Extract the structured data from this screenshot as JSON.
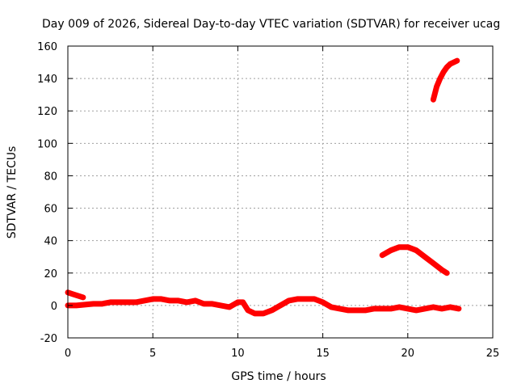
{
  "chart_data": {
    "type": "line",
    "title": "Day 009 of 2026, Sidereal Day-to-day VTEC variation (SDTVAR) for receiver ucag",
    "xlabel": "GPS time / hours",
    "ylabel": "SDTVAR / TECUs",
    "xlim": [
      0,
      25
    ],
    "ylim": [
      -20,
      160
    ],
    "xticks": [
      0,
      5,
      10,
      15,
      20,
      25
    ],
    "yticks": [
      -20,
      0,
      20,
      40,
      60,
      80,
      100,
      120,
      140,
      160
    ],
    "grid": true,
    "color": "#ff0000",
    "series": [
      {
        "name": "early-offset",
        "x": [
          0.0,
          0.3,
          0.6,
          0.9
        ],
        "y": [
          8,
          7,
          6,
          5
        ]
      },
      {
        "name": "main",
        "x": [
          0.0,
          0.5,
          1.0,
          1.5,
          2.0,
          2.5,
          3.0,
          3.5,
          4.0,
          4.5,
          5.0,
          5.5,
          6.0,
          6.5,
          7.0,
          7.5,
          8.0,
          8.5,
          9.0,
          9.5,
          10.0,
          10.3,
          10.6,
          11.0,
          11.5,
          12.0,
          12.5,
          13.0,
          13.5,
          14.0,
          14.5,
          15.0,
          15.5,
          16.0,
          16.5,
          17.0,
          17.5,
          18.0,
          18.5,
          19.0,
          19.5,
          20.0,
          20.5,
          21.0,
          21.5,
          22.0,
          22.5,
          23.0
        ],
        "y": [
          0,
          0,
          0.5,
          1,
          1,
          2,
          2,
          2,
          2,
          3,
          4,
          4,
          3,
          3,
          2,
          3,
          1,
          1,
          0,
          -1,
          2,
          2,
          -3,
          -5,
          -5,
          -3,
          0,
          3,
          4,
          4,
          4,
          2,
          -1,
          -2,
          -3,
          -3,
          -3,
          -2,
          -2,
          -2,
          -1,
          -2,
          -3,
          -2,
          -1,
          -2,
          -1,
          -2
        ]
      },
      {
        "name": "mid-arc",
        "x": [
          18.5,
          19.0,
          19.5,
          20.0,
          20.5,
          21.0,
          21.5,
          22.0,
          22.3
        ],
        "y": [
          31,
          34,
          36,
          36,
          34,
          30,
          26,
          22,
          20
        ]
      },
      {
        "name": "upper-arc",
        "x": [
          21.5,
          21.7,
          21.9,
          22.1,
          22.3,
          22.5,
          22.7,
          22.9
        ],
        "y": [
          127,
          135,
          140,
          144,
          147,
          149,
          150,
          151
        ]
      }
    ]
  }
}
